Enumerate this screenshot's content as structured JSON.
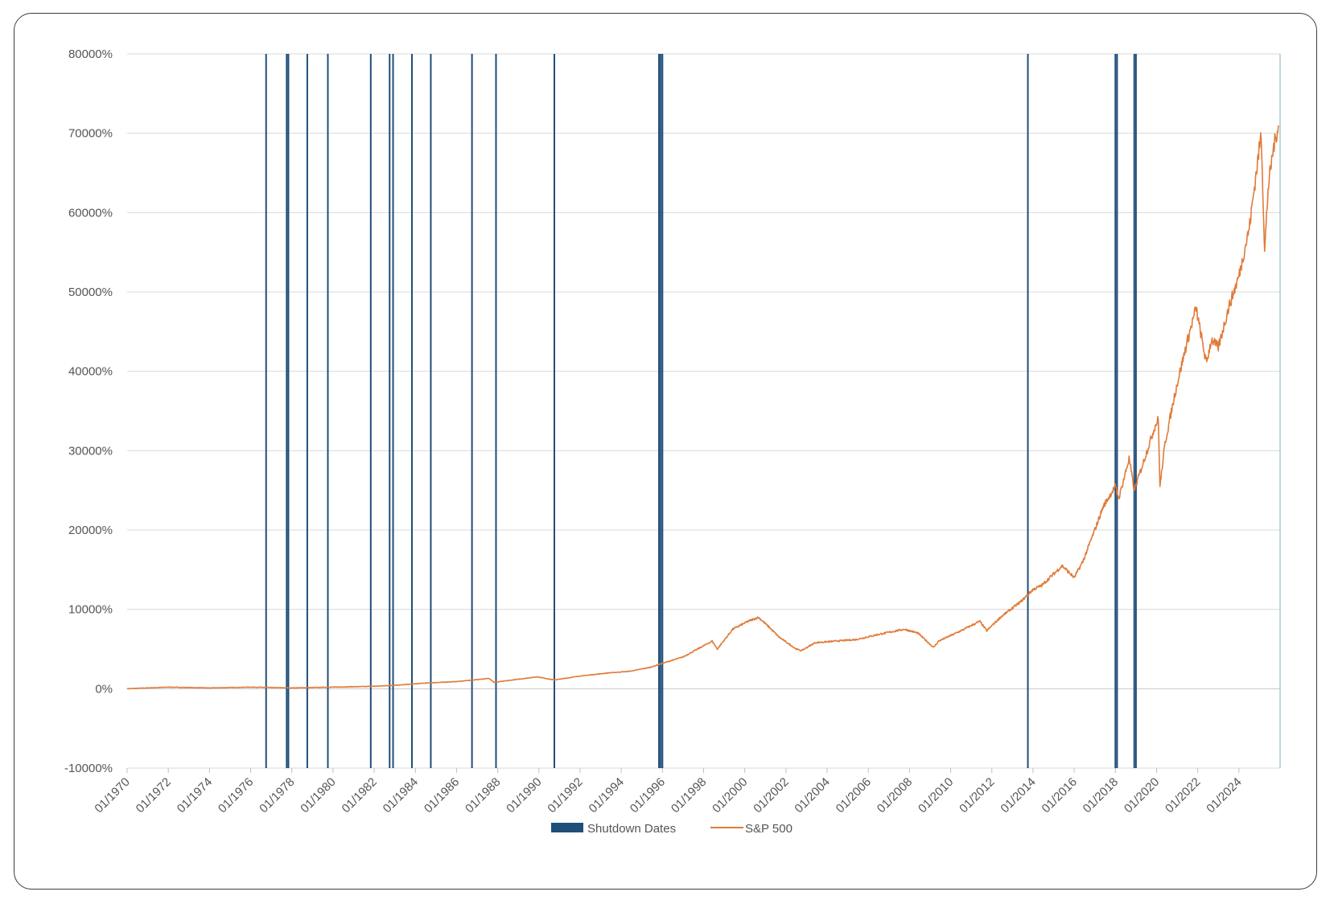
{
  "chart_data": {
    "type": "line",
    "title": "",
    "xlabel": "",
    "ylabel": "",
    "x_range": [
      "01/1970",
      "12/2025"
    ],
    "ylim": [
      -10000,
      80000
    ],
    "y_ticks": [
      -10000,
      0,
      10000,
      20000,
      30000,
      40000,
      50000,
      60000,
      70000,
      80000
    ],
    "y_tick_labels": [
      "-10000%",
      "0%",
      "10000%",
      "20000%",
      "30000%",
      "40000%",
      "50000%",
      "60000%",
      "70000%",
      "80000%"
    ],
    "x_tick_labels": [
      "01/1970",
      "01/1972",
      "01/1974",
      "01/1976",
      "01/1978",
      "01/1980",
      "01/1982",
      "01/1984",
      "01/1986",
      "01/1988",
      "01/1990",
      "01/1992",
      "01/1994",
      "01/1996",
      "01/1998",
      "01/2000",
      "01/2002",
      "01/2004",
      "01/2006",
      "01/2008",
      "01/2010",
      "01/2012",
      "01/2014",
      "01/2016",
      "01/2018",
      "01/2020",
      "01/2022",
      "01/2024"
    ],
    "grid": "horizontal",
    "legend_position": "bottom",
    "series": [
      {
        "name": "Shutdown Dates",
        "kind": "vertical-bars",
        "color": "#1f4e79",
        "dates": [
          "1976-10",
          "1977-10",
          "1977-11",
          "1978-10",
          "1979-10",
          "1981-11",
          "1982-10",
          "1982-12",
          "1983-11",
          "1984-10",
          "1986-10",
          "1987-12",
          "1990-10",
          "1995-11",
          "1995-12",
          "1996-01",
          "2013-10",
          "2018-01",
          "2018-02",
          "2018-12",
          "2019-01"
        ]
      },
      {
        "name": "S&P 500",
        "kind": "line",
        "color": "#e07b39",
        "points": [
          [
            "1970-01",
            0
          ],
          [
            "1972-01",
            200
          ],
          [
            "1974-01",
            100
          ],
          [
            "1976-01",
            200
          ],
          [
            "1978-01",
            100
          ],
          [
            "1980-01",
            200
          ],
          [
            "1982-01",
            300
          ],
          [
            "1983-06",
            500
          ],
          [
            "1984-06",
            700
          ],
          [
            "1986-01",
            900
          ],
          [
            "1987-08",
            1300
          ],
          [
            "1987-11",
            800
          ],
          [
            "1989-12",
            1500
          ],
          [
            "1990-10",
            1100
          ],
          [
            "1992-01",
            1600
          ],
          [
            "1993-06",
            2000
          ],
          [
            "1994-06",
            2200
          ],
          [
            "1995-06",
            2700
          ],
          [
            "1996-01",
            3200
          ],
          [
            "1997-01",
            4000
          ],
          [
            "1998-06",
            6000
          ],
          [
            "1998-09",
            5000
          ],
          [
            "1999-06",
            7500
          ],
          [
            "2000-03",
            8500
          ],
          [
            "2000-09",
            9000
          ],
          [
            "2001-03",
            7800
          ],
          [
            "2001-09",
            6500
          ],
          [
            "2002-07",
            5000
          ],
          [
            "2002-10",
            4800
          ],
          [
            "2003-06",
            5800
          ],
          [
            "2004-06",
            6000
          ],
          [
            "2005-06",
            6200
          ],
          [
            "2006-06",
            6800
          ],
          [
            "2007-10",
            7500
          ],
          [
            "2008-06",
            7000
          ],
          [
            "2009-03",
            5200
          ],
          [
            "2009-06",
            6000
          ],
          [
            "2010-06",
            7200
          ],
          [
            "2011-06",
            8500
          ],
          [
            "2011-10",
            7300
          ],
          [
            "2012-06",
            9000
          ],
          [
            "2013-06",
            11000
          ],
          [
            "2014-01",
            12500
          ],
          [
            "2014-06",
            13000
          ],
          [
            "2015-06",
            15500
          ],
          [
            "2016-01",
            14000
          ],
          [
            "2016-06",
            16000
          ],
          [
            "2017-01",
            20000
          ],
          [
            "2017-06",
            23000
          ],
          [
            "2018-01",
            25500
          ],
          [
            "2018-03",
            24000
          ],
          [
            "2018-09",
            29000
          ],
          [
            "2018-12",
            25000
          ],
          [
            "2019-06",
            29000
          ],
          [
            "2019-12",
            33000
          ],
          [
            "2020-02",
            34000
          ],
          [
            "2020-03",
            25500
          ],
          [
            "2020-06",
            31000
          ],
          [
            "2020-12",
            37500
          ],
          [
            "2021-06",
            43000
          ],
          [
            "2021-12",
            48000
          ],
          [
            "2022-06",
            41000
          ],
          [
            "2022-09",
            44000
          ],
          [
            "2023-01",
            43000
          ],
          [
            "2023-07",
            48000
          ],
          [
            "2024-01",
            52000
          ],
          [
            "2024-07",
            58000
          ],
          [
            "2025-02",
            70000
          ],
          [
            "2025-04",
            55000
          ],
          [
            "2025-06",
            63000
          ],
          [
            "2025-09",
            68000
          ],
          [
            "2025-12",
            71000
          ]
        ]
      }
    ]
  }
}
